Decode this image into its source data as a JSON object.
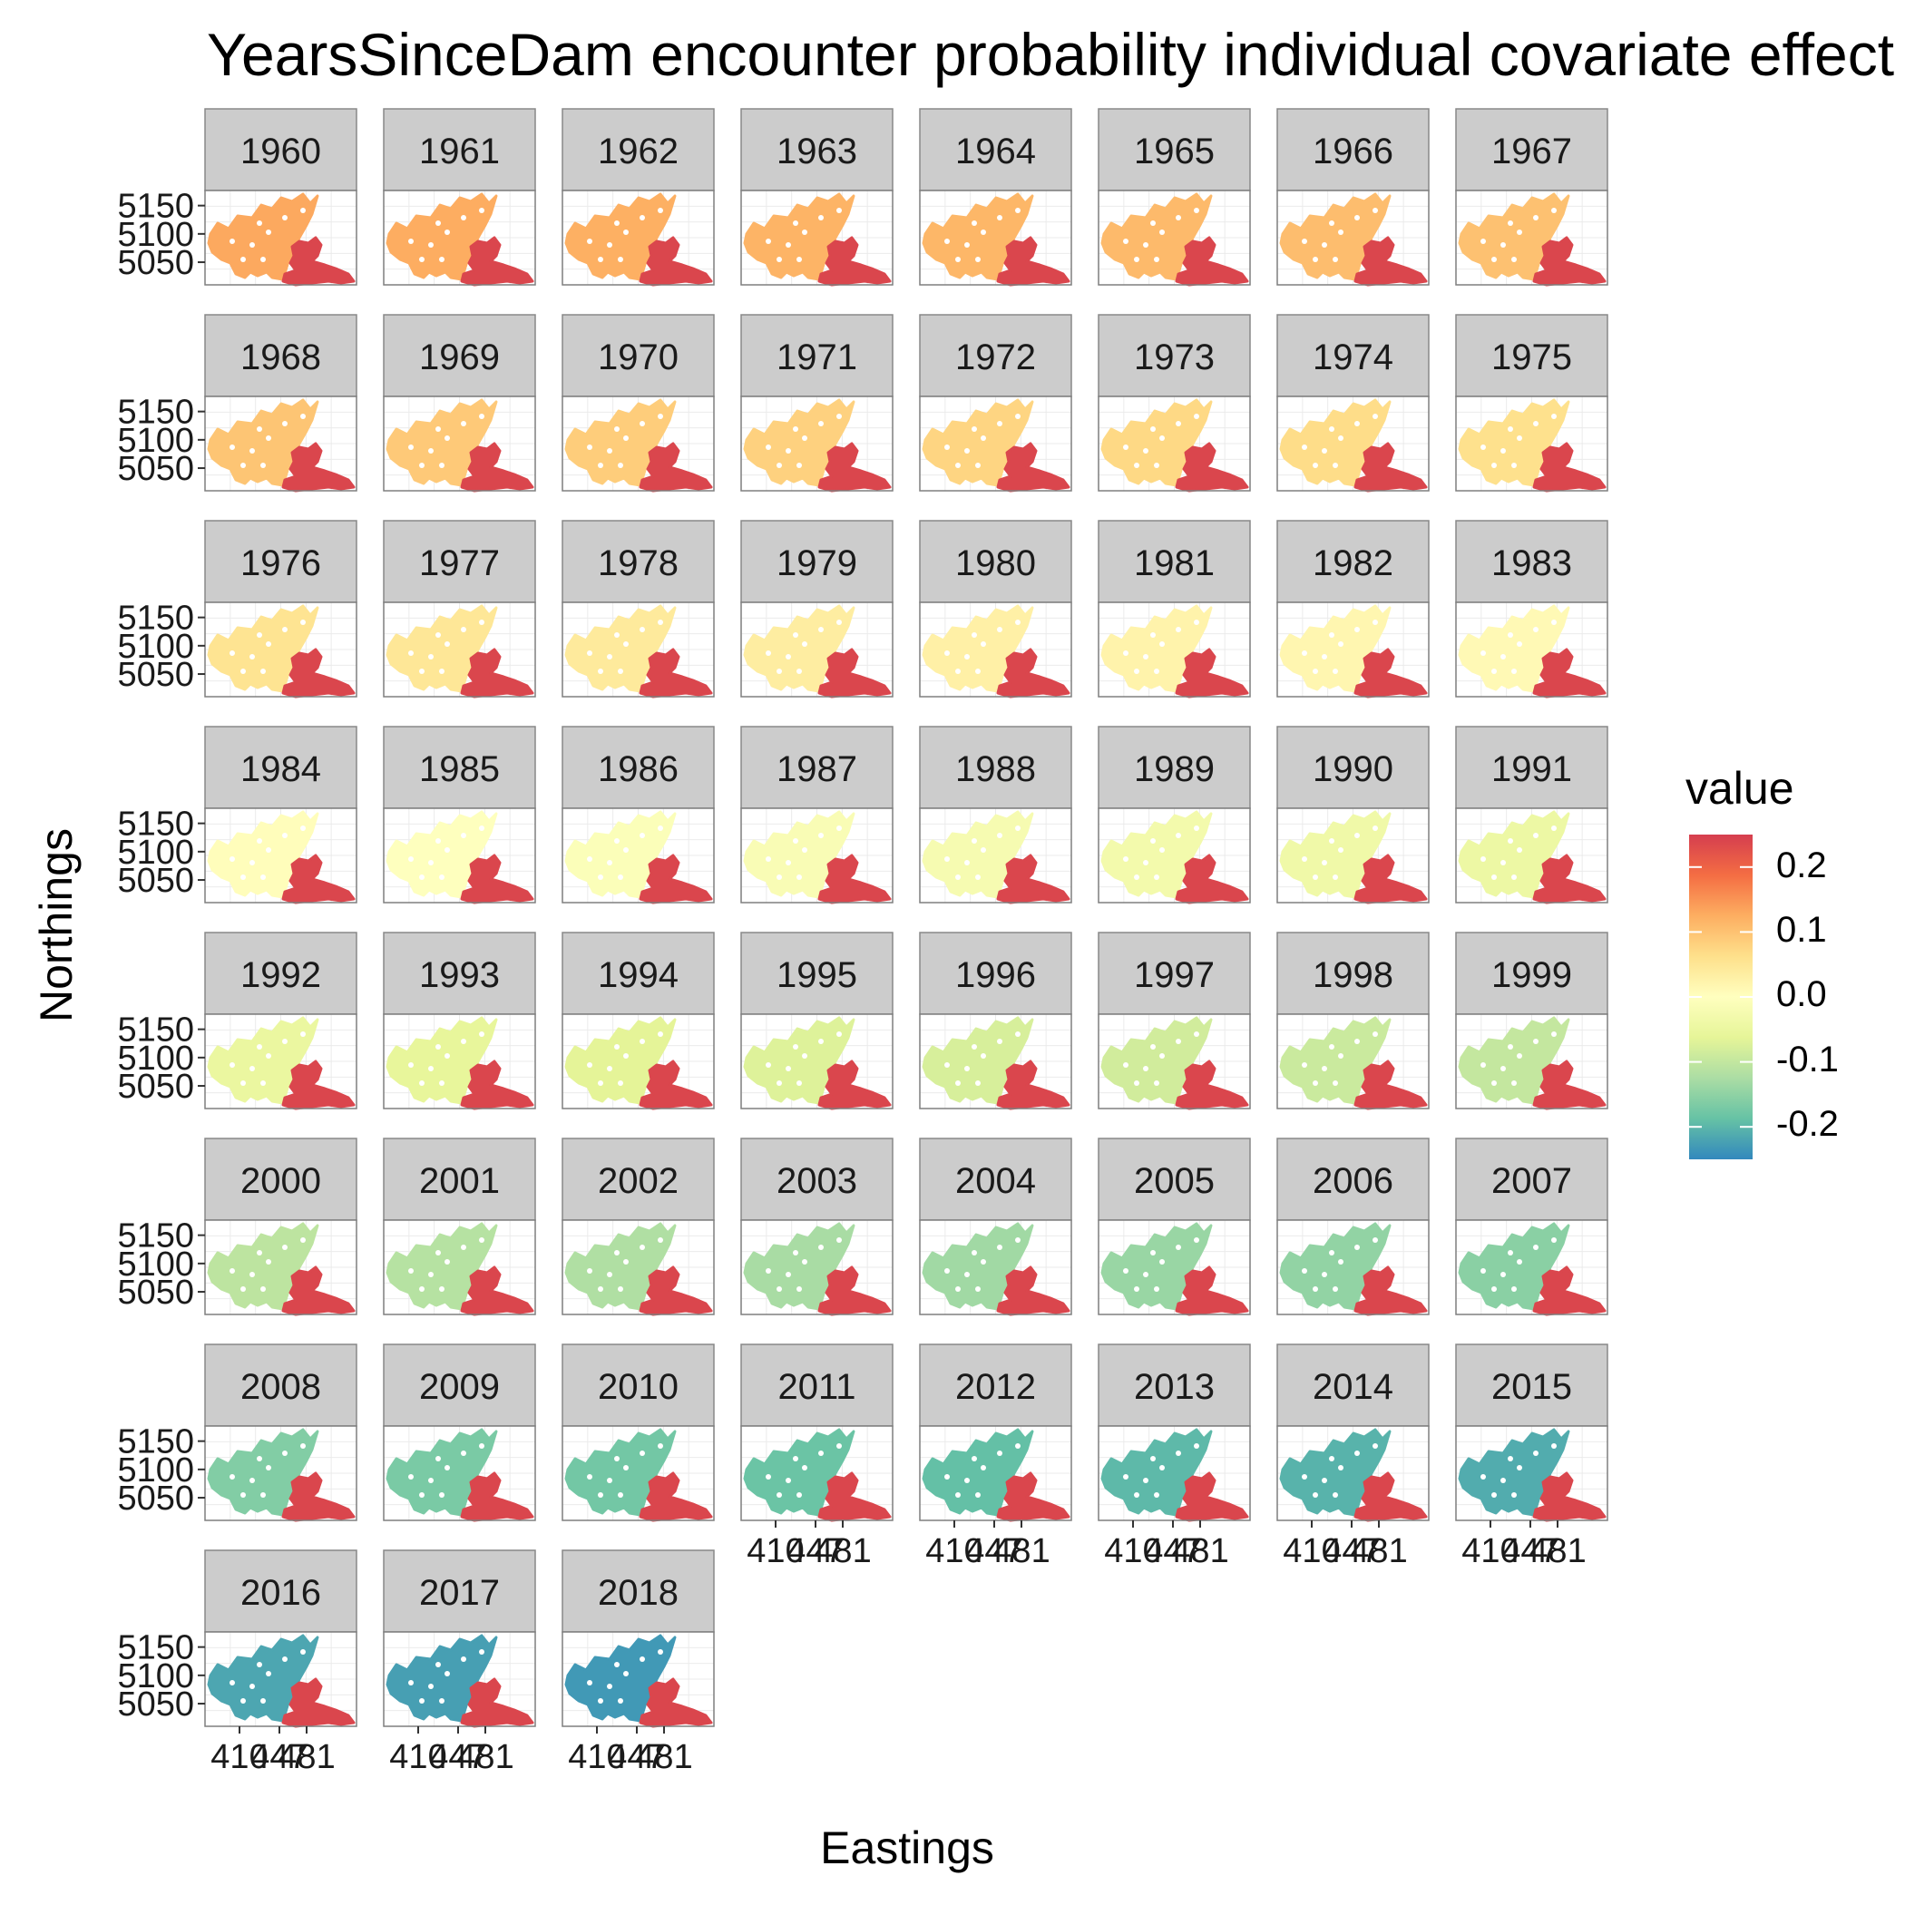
{
  "chart_data": {
    "type": "heatmap",
    "title": "YearsSinceDam encounter probability individual covariate effect",
    "xlabel": "Eastings",
    "ylabel": "Northings",
    "facets": [
      1960,
      1961,
      1962,
      1963,
      1964,
      1965,
      1966,
      1967,
      1968,
      1969,
      1970,
      1971,
      1972,
      1973,
      1974,
      1975,
      1976,
      1977,
      1978,
      1979,
      1980,
      1981,
      1982,
      1983,
      1984,
      1985,
      1986,
      1987,
      1988,
      1989,
      1990,
      1991,
      1992,
      1993,
      1994,
      1995,
      1996,
      1997,
      1998,
      1999,
      2000,
      2001,
      2002,
      2003,
      2004,
      2005,
      2006,
      2007,
      2008,
      2009,
      2010,
      2011,
      2012,
      2013,
      2014,
      2015,
      2016,
      2017,
      2018
    ],
    "facet_labels": [
      "1960",
      "1961",
      "1962",
      "1963",
      "1964",
      "1965",
      "1966",
      "1967",
      "1968",
      "1969",
      "1970",
      "1971",
      "1972",
      "1973",
      "1974",
      "1975",
      "1976",
      "1977",
      "1978",
      "1979",
      "1980",
      "1981",
      "1982",
      "1983",
      "1984",
      "1985",
      "1986",
      "1987",
      "1988",
      "1989",
      "1990",
      "1991",
      "1992",
      "1993",
      "1994",
      "1995",
      "1996",
      "1997",
      "1998",
      "1999",
      "2000",
      "2001",
      "2002",
      "2003",
      "2004",
      "2005",
      "2006",
      "2007",
      "2008",
      "2009",
      "2010",
      "2011",
      "2012",
      "2013",
      "2014",
      "2015",
      "2016",
      "2017",
      "2018"
    ],
    "upstream_values": [
      0.13,
      0.126,
      0.122,
      0.118,
      0.114,
      0.11,
      0.106,
      0.101,
      0.096,
      0.091,
      0.086,
      0.081,
      0.076,
      0.071,
      0.066,
      0.06,
      0.054,
      0.048,
      0.042,
      0.036,
      0.03,
      0.024,
      0.018,
      0.012,
      0.005,
      -0.002,
      -0.009,
      -0.016,
      -0.023,
      -0.03,
      -0.037,
      -0.044,
      -0.05,
      -0.057,
      -0.064,
      -0.071,
      -0.078,
      -0.085,
      -0.092,
      -0.099,
      -0.106,
      -0.113,
      -0.12,
      -0.127,
      -0.134,
      -0.141,
      -0.148,
      -0.155,
      -0.162,
      -0.169,
      -0.176,
      -0.183,
      -0.19,
      -0.197,
      -0.204,
      -0.211,
      -0.218,
      -0.225,
      -0.232
    ],
    "downstream_value": 0.24,
    "y_ticks": [
      5050,
      5100,
      5150
    ],
    "y_tick_labels": [
      "5050",
      "5100",
      "5150"
    ],
    "x_tick_labels": [
      "410",
      "447",
      "481"
    ],
    "legend": {
      "title": "value",
      "ticks": [
        0.2,
        0.1,
        0.0,
        -0.1,
        -0.2
      ],
      "tick_labels": [
        "0.2",
        "0.1",
        "0.0",
        "-0.1",
        "-0.2"
      ],
      "range": [
        -0.25,
        0.25
      ],
      "position": "right"
    },
    "ncol": 8,
    "palette": [
      "#3288bd",
      "#66c2a5",
      "#abdda4",
      "#e6f598",
      "#ffffbf",
      "#fee08b",
      "#fdae61",
      "#f46d43",
      "#d53e4f"
    ]
  }
}
